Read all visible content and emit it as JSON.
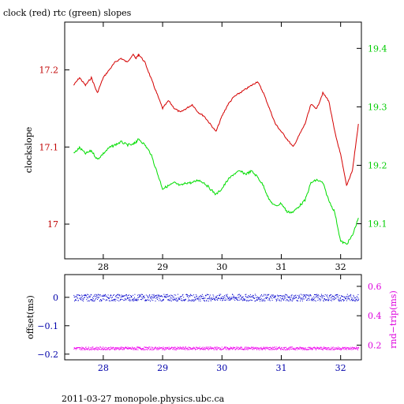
{
  "chart_data": [
    {
      "type": "line",
      "title": "clock (red) rtc (green) slopes",
      "ylabel": "clockslope",
      "xlim": [
        27.35,
        32.35
      ],
      "ylim_left": [
        16.955,
        17.262
      ],
      "ylim_right": [
        19.04,
        19.445
      ],
      "x_ticks": [
        "28",
        "29",
        "30",
        "31",
        "32"
      ],
      "y_ticks_left": [
        "17",
        "17.1",
        "17.2"
      ],
      "y_ticks_right": [
        "19.1",
        "19.2",
        "19.3",
        "19.4"
      ],
      "colors": {
        "clock": "#d40000",
        "rtc": "#00dd00",
        "left_axis": "#c00000",
        "right_axis": "#00cc00"
      },
      "series": [
        {
          "name": "clock",
          "axis": "left",
          "x": [
            27.5,
            27.6,
            27.7,
            27.8,
            27.9,
            28.0,
            28.1,
            28.2,
            28.3,
            28.4,
            28.5,
            28.55,
            28.6,
            28.7,
            28.8,
            28.9,
            29.0,
            29.1,
            29.2,
            29.3,
            29.4,
            29.5,
            29.6,
            29.7,
            29.8,
            29.9,
            30.0,
            30.1,
            30.2,
            30.3,
            30.4,
            30.5,
            30.6,
            30.7,
            30.8,
            30.9,
            31.0,
            31.1,
            31.2,
            31.3,
            31.4,
            31.5,
            31.6,
            31.7,
            31.8,
            31.9,
            32.0,
            32.1,
            32.2,
            32.3
          ],
          "y": [
            17.18,
            17.19,
            17.18,
            17.19,
            17.17,
            17.19,
            17.2,
            17.21,
            17.215,
            17.21,
            17.22,
            17.215,
            17.22,
            17.21,
            17.19,
            17.17,
            17.15,
            17.16,
            17.15,
            17.145,
            17.15,
            17.155,
            17.145,
            17.14,
            17.13,
            17.12,
            17.14,
            17.155,
            17.165,
            17.17,
            17.175,
            17.18,
            17.185,
            17.17,
            17.15,
            17.13,
            17.12,
            17.11,
            17.1,
            17.115,
            17.13,
            17.155,
            17.15,
            17.17,
            17.16,
            17.12,
            17.09,
            17.05,
            17.07,
            17.13
          ]
        },
        {
          "name": "rtc",
          "axis": "right",
          "x": [
            27.5,
            27.6,
            27.7,
            27.8,
            27.9,
            28.0,
            28.1,
            28.2,
            28.3,
            28.4,
            28.5,
            28.55,
            28.6,
            28.7,
            28.8,
            28.9,
            29.0,
            29.1,
            29.2,
            29.3,
            29.4,
            29.5,
            29.6,
            29.7,
            29.8,
            29.9,
            30.0,
            30.1,
            30.2,
            30.3,
            30.4,
            30.5,
            30.6,
            30.7,
            30.8,
            30.9,
            31.0,
            31.1,
            31.2,
            31.3,
            31.4,
            31.5,
            31.6,
            31.7,
            31.8,
            31.9,
            32.0,
            32.1,
            32.2,
            32.3
          ],
          "y": [
            19.22,
            19.23,
            19.22,
            19.225,
            19.21,
            19.22,
            19.23,
            19.235,
            19.24,
            19.235,
            19.235,
            19.24,
            19.245,
            19.235,
            19.22,
            19.19,
            19.16,
            19.165,
            19.17,
            19.165,
            19.17,
            19.17,
            19.175,
            19.17,
            19.16,
            19.15,
            19.16,
            19.175,
            19.185,
            19.19,
            19.185,
            19.19,
            19.18,
            19.165,
            19.14,
            19.13,
            19.135,
            19.12,
            19.12,
            19.13,
            19.14,
            19.17,
            19.175,
            19.17,
            19.14,
            19.12,
            19.07,
            19.065,
            19.08,
            19.11
          ]
        }
      ]
    },
    {
      "type": "scatter",
      "ylabel_left": "offset(ms)",
      "ylabel_right": "rnd−trip(ms)",
      "xlim": [
        27.35,
        32.35
      ],
      "ylim_left": [
        -0.22,
        0.08
      ],
      "ylim_right": [
        0.1,
        0.68
      ],
      "x_ticks": [
        "28",
        "29",
        "30",
        "31",
        "32"
      ],
      "y_ticks_left": [
        "−0.2",
        "−0.1",
        "0"
      ],
      "y_ticks_right": [
        "0.2",
        "0.4",
        "0.6"
      ],
      "colors": {
        "offset": "#0000cc",
        "roundtrip": "#ee00ee",
        "left_axis": "#0000aa",
        "right_axis": "#dd00dd"
      },
      "series": [
        {
          "name": "offset",
          "axis": "left",
          "x_range": [
            27.5,
            32.3
          ],
          "y_center": 0.0,
          "y_spread": 0.012
        },
        {
          "name": "rnd-trip",
          "axis": "right",
          "x_range": [
            27.5,
            32.3
          ],
          "y_center": 0.18,
          "y_spread": 0.01
        }
      ]
    }
  ],
  "footer": "2011-03-27  monopole.physics.ubc.ca"
}
